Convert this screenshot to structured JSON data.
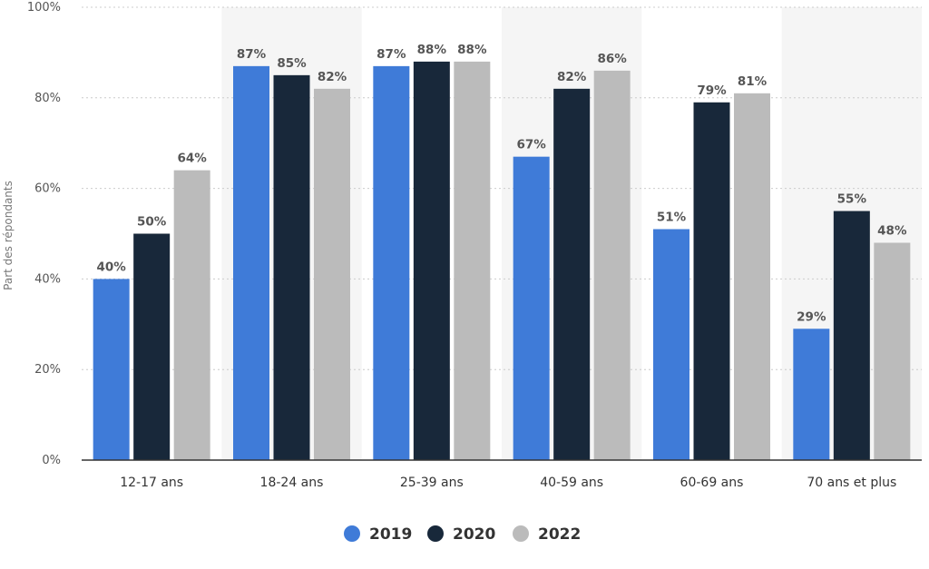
{
  "chart_data": {
    "type": "bar",
    "categories": [
      "12-17 ans",
      "18-24 ans",
      "25-39 ans",
      "40-59 ans",
      "60-69 ans",
      "70 ans et plus"
    ],
    "series": [
      {
        "name": "2019",
        "values": [
          40,
          87,
          87,
          67,
          51,
          29
        ],
        "color": "#3f7bd8"
      },
      {
        "name": "2020",
        "values": [
          50,
          85,
          88,
          82,
          79,
          55
        ],
        "color": "#18283a"
      },
      {
        "name": "2022",
        "values": [
          64,
          82,
          88,
          86,
          81,
          48
        ],
        "color": "#bbbbbb"
      }
    ],
    "ylabel": "Part des répondants",
    "xlabel": "",
    "ylim": [
      0,
      100
    ],
    "yticks": [
      "0%",
      "20%",
      "40%",
      "60%",
      "80%",
      "100%"
    ],
    "value_suffix": "%",
    "grid": true,
    "legend_position": "bottom-center",
    "alternate_band_color": "#f5f5f5",
    "grid_color": "#cccccc",
    "axis_color": "#333333"
  }
}
